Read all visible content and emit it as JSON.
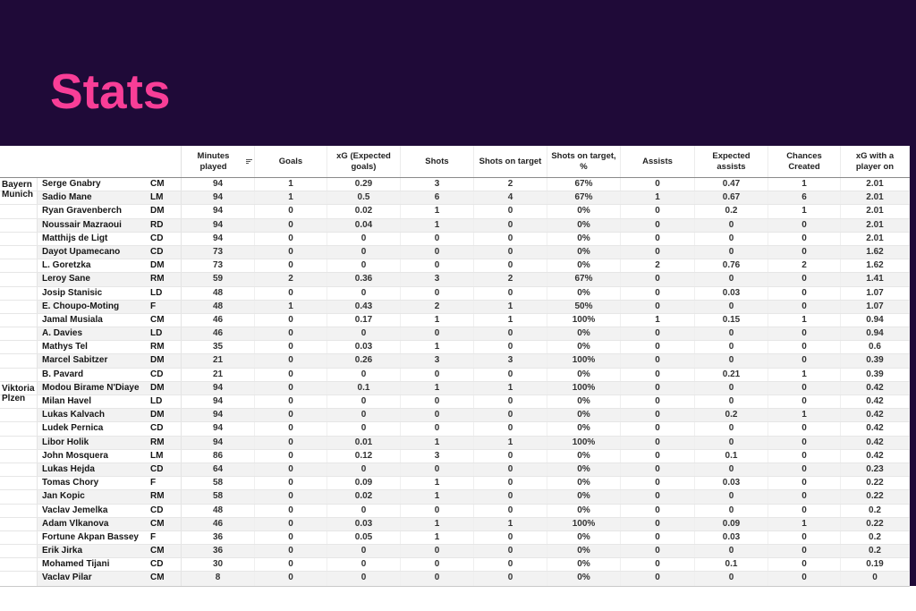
{
  "page": {
    "title": "Stats",
    "colors": {
      "background_purple": "#1f0a38",
      "title_pink": "#f83e97",
      "row_stripe": "#f2f2f2"
    },
    "icons": {
      "minutes_played_sort": "sort-icon"
    }
  },
  "chart_data": {
    "type": "table",
    "title": "Stats",
    "columns": [
      "Minutes played",
      "Goals",
      "xG (Expected goals)",
      "Shots",
      "Shots on target",
      "Shots on target, %",
      "Assists",
      "Expected assists",
      "Chances Created",
      "xG with a player on"
    ],
    "groups": [
      {
        "team": "Bayern Munich",
        "players": [
          {
            "name": "Serge Gnabry",
            "pos": "CM",
            "values": [
              "94",
              "1",
              "0.29",
              "3",
              "2",
              "67%",
              "0",
              "0.47",
              "1",
              "2.01"
            ]
          },
          {
            "name": "Sadio Mane",
            "pos": "LM",
            "values": [
              "94",
              "1",
              "0.5",
              "6",
              "4",
              "67%",
              "1",
              "0.67",
              "6",
              "2.01"
            ]
          },
          {
            "name": "Ryan Gravenberch",
            "pos": "DM",
            "values": [
              "94",
              "0",
              "0.02",
              "1",
              "0",
              "0%",
              "0",
              "0.2",
              "1",
              "2.01"
            ]
          },
          {
            "name": "Noussair Mazraoui",
            "pos": "RD",
            "values": [
              "94",
              "0",
              "0.04",
              "1",
              "0",
              "0%",
              "0",
              "0",
              "0",
              "2.01"
            ]
          },
          {
            "name": "Matthijs de Ligt",
            "pos": "CD",
            "values": [
              "94",
              "0",
              "0",
              "0",
              "0",
              "0%",
              "0",
              "0",
              "0",
              "2.01"
            ]
          },
          {
            "name": "Dayot Upamecano",
            "pos": "CD",
            "values": [
              "73",
              "0",
              "0",
              "0",
              "0",
              "0%",
              "0",
              "0",
              "0",
              "1.62"
            ]
          },
          {
            "name": "L. Goretzka",
            "pos": "DM",
            "values": [
              "73",
              "0",
              "0",
              "0",
              "0",
              "0%",
              "2",
              "0.76",
              "2",
              "1.62"
            ]
          },
          {
            "name": "Leroy Sane",
            "pos": "RM",
            "values": [
              "59",
              "2",
              "0.36",
              "3",
              "2",
              "67%",
              "0",
              "0",
              "0",
              "1.41"
            ]
          },
          {
            "name": "Josip Stanisic",
            "pos": "LD",
            "values": [
              "48",
              "0",
              "0",
              "0",
              "0",
              "0%",
              "0",
              "0.03",
              "0",
              "1.07"
            ]
          },
          {
            "name": "E. Choupo-Moting",
            "pos": "F",
            "values": [
              "48",
              "1",
              "0.43",
              "2",
              "1",
              "50%",
              "0",
              "0",
              "0",
              "1.07"
            ]
          },
          {
            "name": "Jamal Musiala",
            "pos": "CM",
            "values": [
              "46",
              "0",
              "0.17",
              "1",
              "1",
              "100%",
              "1",
              "0.15",
              "1",
              "0.94"
            ]
          },
          {
            "name": "A. Davies",
            "pos": "LD",
            "values": [
              "46",
              "0",
              "0",
              "0",
              "0",
              "0%",
              "0",
              "0",
              "0",
              "0.94"
            ]
          },
          {
            "name": "Mathys Tel",
            "pos": "RM",
            "values": [
              "35",
              "0",
              "0.03",
              "1",
              "0",
              "0%",
              "0",
              "0",
              "0",
              "0.6"
            ]
          },
          {
            "name": "Marcel Sabitzer",
            "pos": "DM",
            "values": [
              "21",
              "0",
              "0.26",
              "3",
              "3",
              "100%",
              "0",
              "0",
              "0",
              "0.39"
            ]
          },
          {
            "name": "B. Pavard",
            "pos": "CD",
            "values": [
              "21",
              "0",
              "0",
              "0",
              "0",
              "0%",
              "0",
              "0.21",
              "1",
              "0.39"
            ]
          }
        ]
      },
      {
        "team": "Viktoria Plzen",
        "players": [
          {
            "name": "Modou Birame N'Diaye",
            "pos": "DM",
            "values": [
              "94",
              "0",
              "0.1",
              "1",
              "1",
              "100%",
              "0",
              "0",
              "0",
              "0.42"
            ]
          },
          {
            "name": "Milan Havel",
            "pos": "LD",
            "values": [
              "94",
              "0",
              "0",
              "0",
              "0",
              "0%",
              "0",
              "0",
              "0",
              "0.42"
            ]
          },
          {
            "name": "Lukas Kalvach",
            "pos": "DM",
            "values": [
              "94",
              "0",
              "0",
              "0",
              "0",
              "0%",
              "0",
              "0.2",
              "1",
              "0.42"
            ]
          },
          {
            "name": "Ludek Pernica",
            "pos": "CD",
            "values": [
              "94",
              "0",
              "0",
              "0",
              "0",
              "0%",
              "0",
              "0",
              "0",
              "0.42"
            ]
          },
          {
            "name": "Libor Holik",
            "pos": "RM",
            "values": [
              "94",
              "0",
              "0.01",
              "1",
              "1",
              "100%",
              "0",
              "0",
              "0",
              "0.42"
            ]
          },
          {
            "name": "John Mosquera",
            "pos": "LM",
            "values": [
              "86",
              "0",
              "0.12",
              "3",
              "0",
              "0%",
              "0",
              "0.1",
              "0",
              "0.42"
            ]
          },
          {
            "name": "Lukas Hejda",
            "pos": "CD",
            "values": [
              "64",
              "0",
              "0",
              "0",
              "0",
              "0%",
              "0",
              "0",
              "0",
              "0.23"
            ]
          },
          {
            "name": "Tomas Chory",
            "pos": "F",
            "values": [
              "58",
              "0",
              "0.09",
              "1",
              "0",
              "0%",
              "0",
              "0.03",
              "0",
              "0.22"
            ]
          },
          {
            "name": "Jan Kopic",
            "pos": "RM",
            "values": [
              "58",
              "0",
              "0.02",
              "1",
              "0",
              "0%",
              "0",
              "0",
              "0",
              "0.22"
            ]
          },
          {
            "name": "Vaclav Jemelka",
            "pos": "CD",
            "values": [
              "48",
              "0",
              "0",
              "0",
              "0",
              "0%",
              "0",
              "0",
              "0",
              "0.2"
            ]
          },
          {
            "name": "Adam Vlkanova",
            "pos": "CM",
            "values": [
              "46",
              "0",
              "0.03",
              "1",
              "1",
              "100%",
              "0",
              "0.09",
              "1",
              "0.22"
            ]
          },
          {
            "name": "Fortune Akpan Bassey",
            "pos": "F",
            "values": [
              "36",
              "0",
              "0.05",
              "1",
              "0",
              "0%",
              "0",
              "0.03",
              "0",
              "0.2"
            ]
          },
          {
            "name": "Erik Jirka",
            "pos": "CM",
            "values": [
              "36",
              "0",
              "0",
              "0",
              "0",
              "0%",
              "0",
              "0",
              "0",
              "0.2"
            ]
          },
          {
            "name": "Mohamed Tijani",
            "pos": "CD",
            "values": [
              "30",
              "0",
              "0",
              "0",
              "0",
              "0%",
              "0",
              "0.1",
              "0",
              "0.19"
            ]
          },
          {
            "name": "Vaclav Pilar",
            "pos": "CM",
            "values": [
              "8",
              "0",
              "0",
              "0",
              "0",
              "0%",
              "0",
              "0",
              "0",
              "0"
            ]
          }
        ]
      }
    ]
  }
}
